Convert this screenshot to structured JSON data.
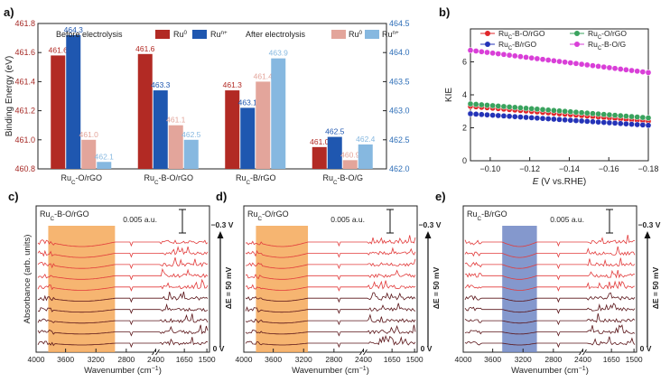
{
  "chart_data": [
    {
      "panel_label": "a)",
      "type": "bar",
      "title": "",
      "ylabel": "Binding Energy (eV)",
      "ylim_left": [
        460.8,
        461.8
      ],
      "ylim_right": [
        462.0,
        464.5
      ],
      "left_ticks": [
        "460.8",
        "461.0",
        "461.2",
        "461.4",
        "461.6",
        "461.8"
      ],
      "right_ticks": [
        "462.0",
        "462.5",
        "463.0",
        "463.5",
        "464.0",
        "464.5"
      ],
      "categories": [
        "RuC-O/rGO",
        "RuC-B-O/rGO",
        "RuC-B/rGO",
        "RuC-B-O/G"
      ],
      "category_labels": [
        {
          "main": "Ru",
          "sub": "C",
          "rest": "-O/rGO"
        },
        {
          "main": "Ru",
          "sub": "C",
          "rest": "-B-O/rGO"
        },
        {
          "main": "Ru",
          "sub": "C",
          "rest": "-B/rGO"
        },
        {
          "main": "Ru",
          "sub": "C",
          "rest": "-B-O/G"
        }
      ],
      "legend_groups": [
        "Before electrolysis",
        "After electrolysis"
      ],
      "series": [
        {
          "name": "Ru0 before",
          "legend": "Ru",
          "sup": "0",
          "axis": "left",
          "color": "#b22a24",
          "labelColor": "#b22a24",
          "values": [
            461.58,
            461.59,
            461.34,
            460.95
          ],
          "labels": [
            "461.6",
            "461.6",
            "461.3",
            "461.0"
          ]
        },
        {
          "name": "Run+ before",
          "legend": "Ru",
          "sup": "n+",
          "axis": "right",
          "color": "#1f57b0",
          "labelColor": "#1f57b0",
          "values": [
            464.3,
            463.35,
            463.05,
            462.55
          ],
          "labels": [
            "464.3",
            "463.3",
            "463.1",
            "462.5"
          ]
        },
        {
          "name": "Ru0 after",
          "legend": "Ru",
          "sup": "0",
          "axis": "left",
          "color": "#e3a59b",
          "labelColor": "#e3a59b",
          "values": [
            461.0,
            461.1,
            461.4,
            460.86
          ],
          "labels": [
            "461.0",
            "461.1",
            "461.4",
            "460.9"
          ]
        },
        {
          "name": "Run+ after",
          "legend": "Ru",
          "sup": "n+",
          "axis": "right",
          "color": "#86b8e0",
          "labelColor": "#86b8e0",
          "values": [
            462.12,
            462.5,
            463.9,
            462.42
          ],
          "labels": [
            "462.1",
            "462.5",
            "463.9",
            "462.4"
          ]
        }
      ]
    },
    {
      "panel_label": "b)",
      "type": "scatter",
      "ylabel": "KIE",
      "xlabel": "E",
      "xlabel_rest": " (V vs.RHE)",
      "xlim": [
        -0.09,
        -0.18
      ],
      "ylim": [
        0,
        8
      ],
      "x_ticks": [
        "-0.10",
        "-0.12",
        "-0.14",
        "-0.16",
        "-0.18"
      ],
      "y_ticks": [
        "0",
        "2",
        "4",
        "6"
      ],
      "series": [
        {
          "name": "RuC-B-O/rGO",
          "legend": {
            "main": "Ru",
            "sub": "C",
            "rest": "-B-O/rGO"
          },
          "color": "#e0262a",
          "y_start": 3.3,
          "y_end": 2.4
        },
        {
          "name": "RuC-O/rGO",
          "legend": {
            "main": "Ru",
            "sub": "C",
            "rest": "-O/rGO"
          },
          "color": "#3aa35e",
          "y_start": 3.45,
          "y_end": 2.6
        },
        {
          "name": "RuC-B/rGO",
          "legend": {
            "main": "Ru",
            "sub": "C",
            "rest": "-B/rGO"
          },
          "color": "#2433b8",
          "y_start": 2.85,
          "y_end": 2.15
        },
        {
          "name": "RuC-B-O/G",
          "legend": {
            "main": "Ru",
            "sub": "C",
            "rest": "-B-O/G"
          },
          "color": "#d93fd8",
          "y_start": 6.7,
          "y_end": 5.35
        }
      ]
    },
    {
      "panel_label": "c)",
      "type": "line",
      "sample": {
        "main": "Ru",
        "sub": "C",
        "rest": "-B-O/rGO"
      },
      "scale_label": "0.005 a.u.",
      "ylabel": "Absorbance (arb. units)",
      "xlabel": "Wavenumber",
      "xlabel_unit": "(cm",
      "xlabel_exp": "−1",
      "x_ticks": [
        "4000",
        "3600",
        "3200",
        "2800",
        "2400",
        "1650",
        "1500"
      ],
      "potential_top": "−0.3 V",
      "potential_bottom": "0 V",
      "delta_label": "ΔE = 50 mV",
      "highlight": "orange",
      "n_spectra": 10
    },
    {
      "panel_label": "d)",
      "type": "line",
      "sample": {
        "main": "Ru",
        "sub": "C",
        "rest": "-O/rGO"
      },
      "scale_label": "0.005 a.u.",
      "xlabel": "Wavenumber",
      "xlabel_unit": "(cm",
      "xlabel_exp": "−1",
      "x_ticks": [
        "4000",
        "3600",
        "3200",
        "2800",
        "2400",
        "1650",
        "1500"
      ],
      "potential_top": "−0.3 V",
      "potential_bottom": "0 V",
      "delta_label": "ΔE = 50 mV",
      "highlight": "orange",
      "n_spectra": 10
    },
    {
      "panel_label": "e)",
      "type": "line",
      "sample": {
        "main": "Ru",
        "sub": "C",
        "rest": "-B/rGO"
      },
      "scale_label": "0.005 a.u.",
      "xlabel": "Wavenumber",
      "xlabel_unit": "(cm",
      "xlabel_exp": "−1",
      "x_ticks": [
        "4000",
        "3600",
        "3200",
        "2800",
        "2400",
        "1650",
        "1500"
      ],
      "potential_top": "−0.3 V",
      "potential_bottom": "0 V",
      "delta_label": "ΔE = 50 mV",
      "highlight": "blue",
      "n_spectra": 10
    }
  ],
  "colors": {
    "orange": "#f5a858",
    "blue": "#6f86c4",
    "right_axis": "#2f6fb8",
    "left_axis": "#a62a26",
    "spectrum_dark": "#5a1418",
    "spectrum_light": "#e23b3b"
  }
}
